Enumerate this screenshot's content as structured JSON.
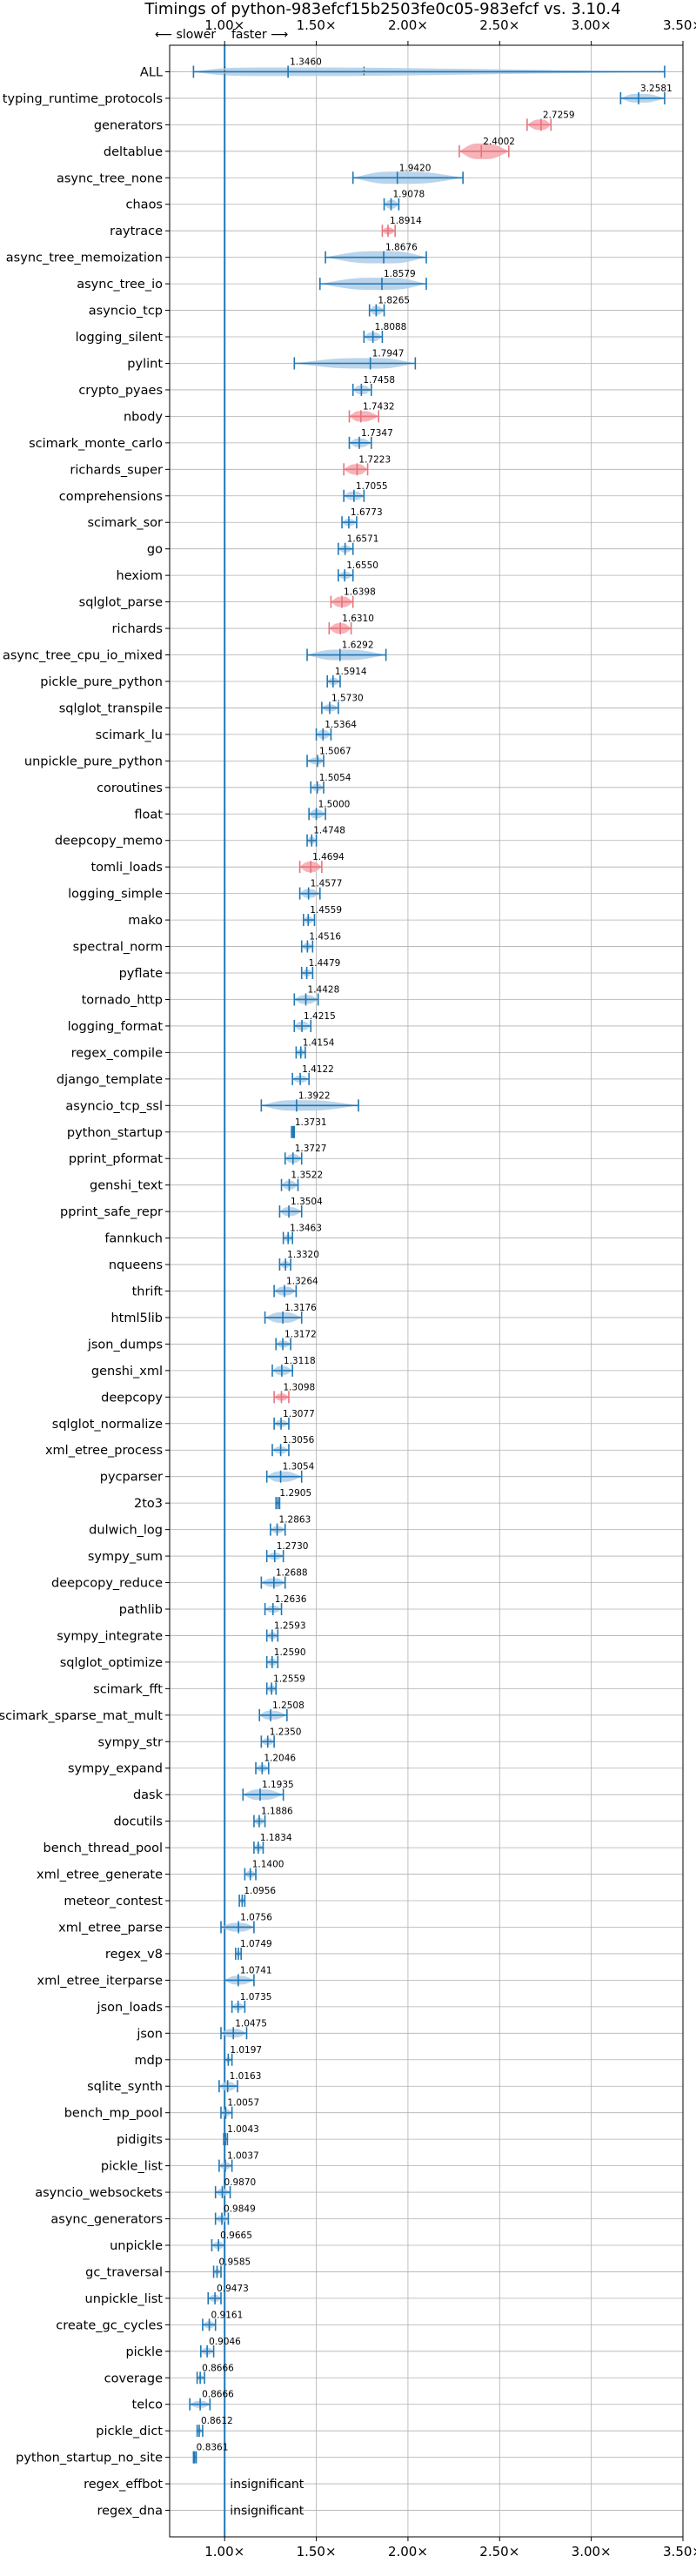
{
  "chart_data": {
    "type": "violin",
    "title": "Timings of python-983efcf15b2503fe0c05-983efcf vs. 3.10.4",
    "annotation_slower": "⟵ slower",
    "annotation_faster": "faster ⟶",
    "xlim": [
      0.7,
      3.5
    ],
    "xticks": [
      1.0,
      1.5,
      2.0,
      2.5,
      3.0,
      3.5
    ],
    "xtick_labels": [
      "1.00×",
      "1.50×",
      "2.00×",
      "2.50×",
      "3.00×",
      "3.50×"
    ],
    "reference_line": 1.0,
    "grid": true,
    "colors": {
      "normal": "#1f77b4",
      "highlight": "#e8737b",
      "body": "#aecde8",
      "body_highlight": "#f4a6ad",
      "grid": "#b0b0b0"
    },
    "benchmarks": [
      {
        "name": "ALL",
        "value": 1.346,
        "label": "1.3460",
        "min": 0.83,
        "max": 3.4,
        "q1": 1.0,
        "q3": 1.76,
        "hw": 5
      },
      {
        "name": "typing_runtime_protocols",
        "value": 3.2581,
        "label": "3.2581",
        "min": 3.16,
        "max": 3.4,
        "hw": 5
      },
      {
        "name": "generators",
        "value": 2.7259,
        "label": "2.7259",
        "min": 2.65,
        "max": 2.78,
        "hl": true,
        "hw": 6
      },
      {
        "name": "deltablue",
        "value": 2.4002,
        "label": "2.4002",
        "min": 2.28,
        "max": 2.55,
        "hl": true,
        "hw": 9
      },
      {
        "name": "async_tree_none",
        "value": 1.942,
        "label": "1.9420",
        "min": 1.7,
        "max": 2.3,
        "hw": 7
      },
      {
        "name": "chaos",
        "value": 1.9078,
        "label": "1.9078",
        "min": 1.87,
        "max": 1.95,
        "hw": 5
      },
      {
        "name": "raytrace",
        "value": 1.8914,
        "label": "1.8914",
        "min": 1.86,
        "max": 1.93,
        "hl": true,
        "hw": 4
      },
      {
        "name": "async_tree_memoization",
        "value": 1.8676,
        "label": "1.8676",
        "min": 1.55,
        "max": 2.1,
        "hw": 7
      },
      {
        "name": "async_tree_io",
        "value": 1.8579,
        "label": "1.8579",
        "min": 1.52,
        "max": 2.1,
        "hw": 7
      },
      {
        "name": "asyncio_tcp",
        "value": 1.8265,
        "label": "1.8265",
        "min": 1.79,
        "max": 1.87,
        "hw": 5
      },
      {
        "name": "logging_silent",
        "value": 1.8088,
        "label": "1.8088",
        "min": 1.76,
        "max": 1.86,
        "hw": 5
      },
      {
        "name": "pylint",
        "value": 1.7947,
        "label": "1.7947",
        "min": 1.38,
        "max": 2.04,
        "hw": 6
      },
      {
        "name": "crypto_pyaes",
        "value": 1.7458,
        "label": "1.7458",
        "min": 1.7,
        "max": 1.8,
        "hw": 5
      },
      {
        "name": "nbody",
        "value": 1.7432,
        "label": "1.7432",
        "min": 1.68,
        "max": 1.84,
        "hl": true,
        "hw": 6
      },
      {
        "name": "scimark_monte_carlo",
        "value": 1.7347,
        "label": "1.7347",
        "min": 1.68,
        "max": 1.8,
        "hw": 5
      },
      {
        "name": "richards_super",
        "value": 1.7223,
        "label": "1.7223",
        "min": 1.65,
        "max": 1.78,
        "hl": true,
        "hw": 6
      },
      {
        "name": "comprehensions",
        "value": 1.7055,
        "label": "1.7055",
        "min": 1.65,
        "max": 1.76,
        "hw": 5
      },
      {
        "name": "scimark_sor",
        "value": 1.6773,
        "label": "1.6773",
        "min": 1.64,
        "max": 1.72,
        "hw": 4
      },
      {
        "name": "go",
        "value": 1.6571,
        "label": "1.6571",
        "min": 1.62,
        "max": 1.7,
        "hw": 4
      },
      {
        "name": "hexiom",
        "value": 1.655,
        "label": "1.6550",
        "min": 1.62,
        "max": 1.7,
        "hw": 4
      },
      {
        "name": "sqlglot_parse",
        "value": 1.6398,
        "label": "1.6398",
        "min": 1.58,
        "max": 1.7,
        "hl": true,
        "hw": 6
      },
      {
        "name": "richards",
        "value": 1.631,
        "label": "1.6310",
        "min": 1.57,
        "max": 1.69,
        "hl": true,
        "hw": 6
      },
      {
        "name": "async_tree_cpu_io_mixed",
        "value": 1.6292,
        "label": "1.6292",
        "min": 1.45,
        "max": 1.88,
        "hw": 6
      },
      {
        "name": "pickle_pure_python",
        "value": 1.5914,
        "label": "1.5914",
        "min": 1.56,
        "max": 1.63,
        "hw": 4
      },
      {
        "name": "sqlglot_transpile",
        "value": 1.573,
        "label": "1.5730",
        "min": 1.53,
        "max": 1.62,
        "hw": 4
      },
      {
        "name": "scimark_lu",
        "value": 1.5364,
        "label": "1.5364",
        "min": 1.5,
        "max": 1.58,
        "hw": 5
      },
      {
        "name": "unpickle_pure_python",
        "value": 1.5067,
        "label": "1.5067",
        "min": 1.45,
        "max": 1.54,
        "hw": 4
      },
      {
        "name": "coroutines",
        "value": 1.5054,
        "label": "1.5054",
        "min": 1.47,
        "max": 1.54,
        "hw": 4
      },
      {
        "name": "float",
        "value": 1.5,
        "label": "1.5000",
        "min": 1.46,
        "max": 1.55,
        "hw": 5
      },
      {
        "name": "deepcopy_memo",
        "value": 1.4748,
        "label": "1.4748",
        "min": 1.45,
        "max": 1.5,
        "hw": 4
      },
      {
        "name": "tomli_loads",
        "value": 1.4694,
        "label": "1.4694",
        "min": 1.41,
        "max": 1.53,
        "hl": true,
        "hw": 6
      },
      {
        "name": "logging_simple",
        "value": 1.4577,
        "label": "1.4577",
        "min": 1.41,
        "max": 1.52,
        "hw": 5
      },
      {
        "name": "mako",
        "value": 1.4559,
        "label": "1.4559",
        "min": 1.43,
        "max": 1.49,
        "hw": 4
      },
      {
        "name": "spectral_norm",
        "value": 1.4516,
        "label": "1.4516",
        "min": 1.42,
        "max": 1.48,
        "hw": 4
      },
      {
        "name": "pyflate",
        "value": 1.4479,
        "label": "1.4479",
        "min": 1.42,
        "max": 1.48,
        "hw": 4
      },
      {
        "name": "tornado_http",
        "value": 1.4428,
        "label": "1.4428",
        "min": 1.38,
        "max": 1.51,
        "hw": 5
      },
      {
        "name": "logging_format",
        "value": 1.4215,
        "label": "1.4215",
        "min": 1.38,
        "max": 1.47,
        "hw": 5
      },
      {
        "name": "regex_compile",
        "value": 1.4154,
        "label": "1.4154",
        "min": 1.39,
        "max": 1.44,
        "hw": 4
      },
      {
        "name": "django_template",
        "value": 1.4122,
        "label": "1.4122",
        "min": 1.37,
        "max": 1.46,
        "hw": 4
      },
      {
        "name": "asyncio_tcp_ssl",
        "value": 1.3922,
        "label": "1.3922",
        "min": 1.2,
        "max": 1.73,
        "hw": 6
      },
      {
        "name": "python_startup",
        "value": 1.3731,
        "label": "1.3731",
        "min": 1.365,
        "max": 1.38,
        "hw": 3
      },
      {
        "name": "pprint_pformat",
        "value": 1.3727,
        "label": "1.3727",
        "min": 1.33,
        "max": 1.42,
        "hw": 5
      },
      {
        "name": "genshi_text",
        "value": 1.3522,
        "label": "1.3522",
        "min": 1.31,
        "max": 1.4,
        "hw": 5
      },
      {
        "name": "pprint_safe_repr",
        "value": 1.3504,
        "label": "1.3504",
        "min": 1.3,
        "max": 1.42,
        "hw": 5
      },
      {
        "name": "fannkuch",
        "value": 1.3463,
        "label": "1.3463",
        "min": 1.32,
        "max": 1.37,
        "hw": 4
      },
      {
        "name": "nqueens",
        "value": 1.332,
        "label": "1.3320",
        "min": 1.3,
        "max": 1.36,
        "hw": 4
      },
      {
        "name": "thrift",
        "value": 1.3264,
        "label": "1.3264",
        "min": 1.27,
        "max": 1.39,
        "hw": 5
      },
      {
        "name": "html5lib",
        "value": 1.3176,
        "label": "1.3176",
        "min": 1.22,
        "max": 1.42,
        "hw": 6
      },
      {
        "name": "json_dumps",
        "value": 1.3172,
        "label": "1.3172",
        "min": 1.28,
        "max": 1.36,
        "hw": 4
      },
      {
        "name": "genshi_xml",
        "value": 1.3118,
        "label": "1.3118",
        "min": 1.26,
        "max": 1.37,
        "hw": 5
      },
      {
        "name": "deepcopy",
        "value": 1.3098,
        "label": "1.3098",
        "min": 1.27,
        "max": 1.35,
        "hl": true,
        "hw": 4
      },
      {
        "name": "sqlglot_normalize",
        "value": 1.3077,
        "label": "1.3077",
        "min": 1.27,
        "max": 1.35,
        "hw": 4
      },
      {
        "name": "xml_etree_process",
        "value": 1.3056,
        "label": "1.3056",
        "min": 1.26,
        "max": 1.35,
        "hw": 4
      },
      {
        "name": "pycparser",
        "value": 1.3054,
        "label": "1.3054",
        "min": 1.23,
        "max": 1.42,
        "hw": 6
      },
      {
        "name": "2to3",
        "value": 1.2905,
        "label": "1.2905",
        "min": 1.28,
        "max": 1.3,
        "hw": 3
      },
      {
        "name": "dulwich_log",
        "value": 1.2863,
        "label": "1.2863",
        "min": 1.25,
        "max": 1.33,
        "hw": 4
      },
      {
        "name": "sympy_sum",
        "value": 1.273,
        "label": "1.2730",
        "min": 1.23,
        "max": 1.32,
        "hw": 4
      },
      {
        "name": "deepcopy_reduce",
        "value": 1.2688,
        "label": "1.2688",
        "min": 1.2,
        "max": 1.33,
        "hw": 5
      },
      {
        "name": "pathlib",
        "value": 1.2636,
        "label": "1.2636",
        "min": 1.22,
        "max": 1.31,
        "hw": 4
      },
      {
        "name": "sympy_integrate",
        "value": 1.2593,
        "label": "1.2593",
        "min": 1.23,
        "max": 1.29,
        "hw": 4
      },
      {
        "name": "sqlglot_optimize",
        "value": 1.259,
        "label": "1.2590",
        "min": 1.23,
        "max": 1.29,
        "hw": 4
      },
      {
        "name": "scimark_fft",
        "value": 1.2559,
        "label": "1.2559",
        "min": 1.23,
        "max": 1.28,
        "hw": 4
      },
      {
        "name": "scimark_sparse_mat_mult",
        "value": 1.2508,
        "label": "1.2508",
        "min": 1.19,
        "max": 1.34,
        "hw": 5
      },
      {
        "name": "sympy_str",
        "value": 1.235,
        "label": "1.2350",
        "min": 1.2,
        "max": 1.27,
        "hw": 4
      },
      {
        "name": "sympy_expand",
        "value": 1.2046,
        "label": "1.2046",
        "min": 1.17,
        "max": 1.24,
        "hw": 4
      },
      {
        "name": "dask",
        "value": 1.1935,
        "label": "1.1935",
        "min": 1.1,
        "max": 1.32,
        "hw": 6
      },
      {
        "name": "docutils",
        "value": 1.1886,
        "label": "1.1886",
        "min": 1.16,
        "max": 1.22,
        "hw": 4
      },
      {
        "name": "bench_thread_pool",
        "value": 1.1834,
        "label": "1.1834",
        "min": 1.16,
        "max": 1.21,
        "hw": 4
      },
      {
        "name": "xml_etree_generate",
        "value": 1.14,
        "label": "1.1400",
        "min": 1.11,
        "max": 1.17,
        "hw": 4
      },
      {
        "name": "meteor_contest",
        "value": 1.0956,
        "label": "1.0956",
        "min": 1.08,
        "max": 1.11,
        "hw": 3
      },
      {
        "name": "xml_etree_parse",
        "value": 1.0756,
        "label": "1.0756",
        "min": 0.98,
        "max": 1.16,
        "hw": 5
      },
      {
        "name": "regex_v8",
        "value": 1.0749,
        "label": "1.0749",
        "min": 1.06,
        "max": 1.09,
        "hw": 3
      },
      {
        "name": "xml_etree_iterparse",
        "value": 1.0741,
        "label": "1.0741",
        "min": 1.0,
        "max": 1.16,
        "hw": 5
      },
      {
        "name": "json_loads",
        "value": 1.0735,
        "label": "1.0735",
        "min": 1.04,
        "max": 1.11,
        "hw": 4
      },
      {
        "name": "json",
        "value": 1.0475,
        "label": "1.0475",
        "min": 0.98,
        "max": 1.12,
        "hw": 5
      },
      {
        "name": "mdp",
        "value": 1.0197,
        "label": "1.0197",
        "min": 1.0,
        "max": 1.04,
        "hw": 3
      },
      {
        "name": "sqlite_synth",
        "value": 1.0163,
        "label": "1.0163",
        "min": 0.97,
        "max": 1.07,
        "hw": 5
      },
      {
        "name": "bench_mp_pool",
        "value": 1.0057,
        "label": "1.0057",
        "min": 0.98,
        "max": 1.04,
        "hw": 4
      },
      {
        "name": "pidigits",
        "value": 1.0043,
        "label": "1.0043",
        "min": 0.995,
        "max": 1.015,
        "hw": 3
      },
      {
        "name": "pickle_list",
        "value": 1.0037,
        "label": "1.0037",
        "min": 0.97,
        "max": 1.04,
        "hw": 4
      },
      {
        "name": "asyncio_websockets",
        "value": 0.987,
        "label": "0.9870",
        "min": 0.95,
        "max": 1.03,
        "hw": 4
      },
      {
        "name": "async_generators",
        "value": 0.9849,
        "label": "0.9849",
        "min": 0.95,
        "max": 1.02,
        "hw": 4
      },
      {
        "name": "unpickle",
        "value": 0.9665,
        "label": "0.9665",
        "min": 0.93,
        "max": 1.0,
        "hw": 4
      },
      {
        "name": "gc_traversal",
        "value": 0.9585,
        "label": "0.9585",
        "min": 0.94,
        "max": 0.98,
        "hw": 3
      },
      {
        "name": "unpickle_list",
        "value": 0.9473,
        "label": "0.9473",
        "min": 0.91,
        "max": 0.98,
        "hw": 4
      },
      {
        "name": "create_gc_cycles",
        "value": 0.9161,
        "label": "0.9161",
        "min": 0.88,
        "max": 0.95,
        "hw": 4
      },
      {
        "name": "pickle",
        "value": 0.9046,
        "label": "0.9046",
        "min": 0.87,
        "max": 0.94,
        "hw": 4
      },
      {
        "name": "coverage",
        "value": 0.8666,
        "label": "0.8666",
        "min": 0.85,
        "max": 0.89,
        "hw": 3
      },
      {
        "name": "telco",
        "value": 0.8666,
        "label": "0.8666",
        "min": 0.81,
        "max": 0.92,
        "hw": 4
      },
      {
        "name": "pickle_dict",
        "value": 0.8612,
        "label": "0.8612",
        "min": 0.85,
        "max": 0.88,
        "hw": 3
      },
      {
        "name": "python_startup_no_site",
        "value": 0.8361,
        "label": "0.8361",
        "min": 0.83,
        "max": 0.845,
        "hw": 3
      },
      {
        "name": "regex_effbot",
        "label": "insignificant",
        "insignificant": true
      },
      {
        "name": "regex_dna",
        "label": "insignificant",
        "insignificant": true
      }
    ]
  }
}
